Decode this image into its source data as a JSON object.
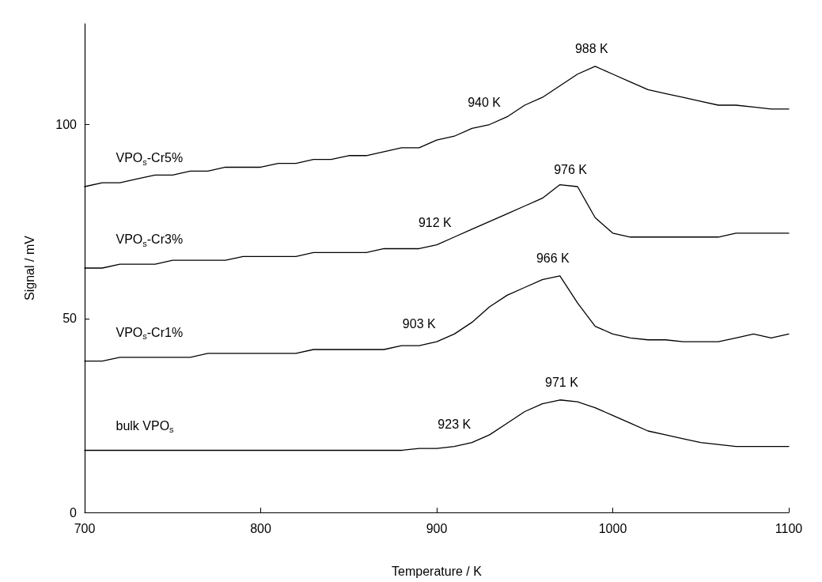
{
  "chart_data": {
    "type": "line",
    "xlabel": "Temperature / K",
    "ylabel": "Signal / mV",
    "xlim": [
      700,
      1100
    ],
    "xticks": [
      700,
      800,
      900,
      1000,
      1100
    ],
    "ylim": [
      0,
      126
    ],
    "yticks": [
      0,
      50,
      100
    ],
    "grid": false,
    "legend": false,
    "marker": "none",
    "line_style": "solid",
    "x": [
      700,
      710,
      720,
      730,
      740,
      750,
      760,
      770,
      780,
      790,
      800,
      810,
      820,
      830,
      840,
      850,
      860,
      870,
      880,
      890,
      900,
      910,
      920,
      930,
      940,
      950,
      960,
      970,
      980,
      990,
      1000,
      1010,
      1020,
      1030,
      1040,
      1050,
      1060,
      1070,
      1080,
      1090,
      1100
    ],
    "series": [
      {
        "name": "VPO$_{s}$-Cr5%",
        "color": "#000000",
        "values": [
          84,
          85,
          85,
          86,
          87,
          87,
          88,
          88,
          89,
          89,
          89,
          90,
          90,
          91,
          91,
          92,
          92,
          93,
          94,
          94,
          96,
          97,
          99,
          100,
          102,
          105,
          107,
          110,
          113,
          115,
          113,
          111,
          109,
          108,
          107,
          106,
          105,
          105,
          104.5,
          104,
          104
        ]
      },
      {
        "name": "VPO$_{s}$-Cr3%",
        "color": "#000000",
        "values": [
          63,
          63,
          64,
          64,
          64,
          65,
          65,
          65,
          65,
          66,
          66,
          66,
          66,
          67,
          67,
          67,
          67,
          68,
          68,
          68,
          69,
          71,
          73,
          75,
          77,
          79,
          81,
          84.5,
          84,
          76,
          72,
          71,
          71,
          71,
          71,
          71,
          71,
          72,
          72,
          72,
          72
        ]
      },
      {
        "name": "VPO$_{s}$-Cr1%",
        "color": "#000000",
        "values": [
          39,
          39,
          40,
          40,
          40,
          40,
          40,
          41,
          41,
          41,
          41,
          41,
          41,
          42,
          42,
          42,
          42,
          42,
          43,
          43,
          44,
          46,
          49,
          53,
          56,
          58,
          60,
          61,
          54,
          48,
          46,
          45,
          44.5,
          44.5,
          44,
          44,
          44,
          45,
          46,
          45,
          46
        ]
      },
      {
        "name": "bulk VPO$_{s}$",
        "color": "#000000",
        "values": [
          16,
          16,
          16,
          16,
          16,
          16,
          16,
          16,
          16,
          16,
          16,
          16,
          16,
          16,
          16,
          16,
          16,
          16,
          16,
          16.5,
          16.5,
          17,
          18,
          20,
          23,
          26,
          28,
          29,
          28.5,
          27,
          25,
          23,
          21,
          20,
          19,
          18,
          17.5,
          17,
          17,
          17,
          17
        ]
      }
    ],
    "annotations": [
      {
        "text": "988 K",
        "x": 988,
        "y": 115
      },
      {
        "text": "940 K",
        "x": 940,
        "y": 102
      },
      {
        "text": "976 K",
        "x": 976,
        "y": 84
      },
      {
        "text": "912 K",
        "x": 912,
        "y": 71
      },
      {
        "text": "966 K",
        "x": 966,
        "y": 61
      },
      {
        "text": "903 K",
        "x": 903,
        "y": 45
      },
      {
        "text": "971 K",
        "x": 971,
        "y": 29
      },
      {
        "text": "923 K",
        "x": 923,
        "y": 19
      }
    ]
  }
}
